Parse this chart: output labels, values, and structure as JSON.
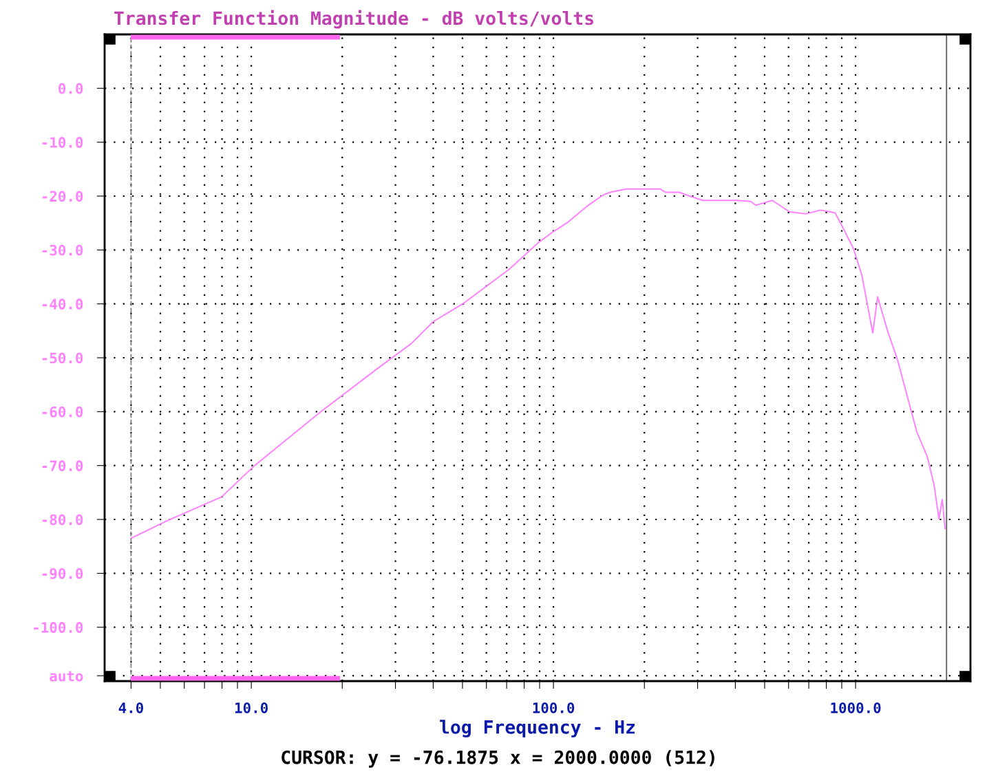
{
  "chart_data": {
    "type": "line",
    "title": "Transfer Function Magnitude - dB volts/volts",
    "xlabel": "log Frequency - Hz",
    "annotations": [
      "CURSOR: y = -76.1875 x = 2000.0000 (512)"
    ],
    "log": "x",
    "grid": true,
    "line_style": "solid",
    "marker": "none",
    "xlim": [
      3.27,
      2400
    ],
    "xticks": [
      {
        "value": 4,
        "label": "4.0"
      },
      {
        "value": 5,
        "label": null
      },
      {
        "value": 6,
        "label": null
      },
      {
        "value": 7,
        "label": null
      },
      {
        "value": 8,
        "label": null
      },
      {
        "value": 9,
        "label": null
      },
      {
        "value": 10,
        "label": "10.0"
      },
      {
        "value": 20,
        "label": null
      },
      {
        "value": 30,
        "label": null
      },
      {
        "value": 40,
        "label": null
      },
      {
        "value": 50,
        "label": null
      },
      {
        "value": 60,
        "label": null
      },
      {
        "value": 70,
        "label": null
      },
      {
        "value": 80,
        "label": null
      },
      {
        "value": 90,
        "label": null
      },
      {
        "value": 100,
        "label": "100.0"
      },
      {
        "value": 200,
        "label": null
      },
      {
        "value": 300,
        "label": null
      },
      {
        "value": 400,
        "label": null
      },
      {
        "value": 500,
        "label": null
      },
      {
        "value": 600,
        "label": null
      },
      {
        "value": 700,
        "label": null
      },
      {
        "value": 800,
        "label": null
      },
      {
        "value": 900,
        "label": null
      },
      {
        "value": 1000,
        "label": "1000.0"
      }
    ],
    "ylim": [
      -110,
      10
    ],
    "yticks": [
      {
        "value": 0,
        "label": "0.0"
      },
      {
        "value": -10,
        "label": "-10.0"
      },
      {
        "value": -20,
        "label": "-20.0"
      },
      {
        "value": -30,
        "label": "-30.0"
      },
      {
        "value": -40,
        "label": "-40.0"
      },
      {
        "value": -50,
        "label": "-50.0"
      },
      {
        "value": -60,
        "label": "-60.0"
      },
      {
        "value": -70,
        "label": "-70.0"
      },
      {
        "value": -80,
        "label": "-80.0"
      },
      {
        "value": -90,
        "label": "-90.0"
      },
      {
        "value": -100,
        "label": "-100.0"
      },
      {
        "value": -109,
        "label": "auto"
      }
    ],
    "ref_lines": [
      {
        "axis": "x",
        "value": 4,
        "label": null,
        "color": "#808080",
        "line_style": "dashed"
      },
      {
        "axis": "x",
        "value": 2000,
        "label": null,
        "color": "#606060",
        "line_style": "solid"
      }
    ],
    "series": [
      {
        "color": "#ff80ff",
        "x": [
          4.0,
          5.24,
          7.98,
          10.3,
          17.0,
          26.3,
          33.8,
          40.0,
          50.1,
          71.3,
          89.3,
          99.3,
          112,
          129,
          145,
          154,
          174,
          226,
          235,
          261,
          279,
          312,
          403,
          450,
          467,
          530,
          604,
          685,
          765,
          855,
          905,
          985,
          1049,
          1140,
          1183,
          1281,
          1377,
          1595,
          1726,
          1820,
          1888,
          1936,
          1977
        ],
        "values": [
          -83.5,
          -80.3,
          -75.8,
          -69.9,
          -60.0,
          -51.9,
          -47.4,
          -43.3,
          -40.0,
          -33.6,
          -28.6,
          -26.7,
          -24.8,
          -21.9,
          -19.9,
          -19.3,
          -18.7,
          -18.7,
          -19.3,
          -19.3,
          -19.9,
          -20.8,
          -20.8,
          -21.0,
          -21.7,
          -20.8,
          -22.9,
          -23.3,
          -22.6,
          -23.1,
          -25.7,
          -29.8,
          -34.7,
          -45.4,
          -38.7,
          -45.3,
          -50.4,
          -63.8,
          -68.3,
          -73.7,
          -79.9,
          -76.3,
          -81.7
        ]
      }
    ]
  }
}
